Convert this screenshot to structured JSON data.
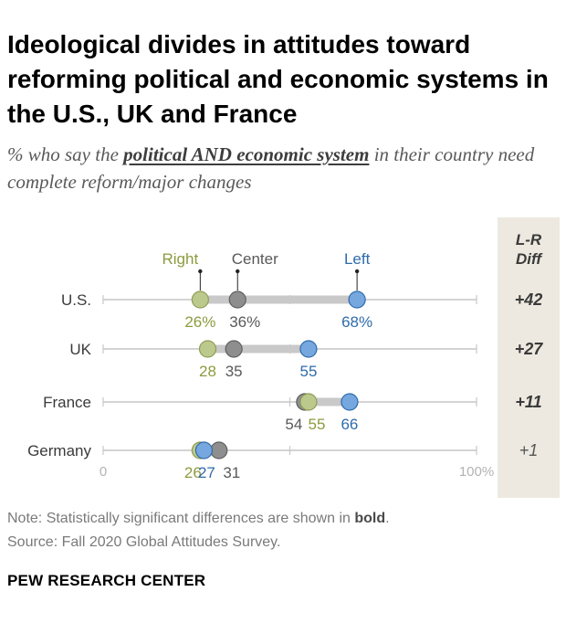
{
  "header": {
    "title": "Ideological divides in attitudes toward reforming political and economic systems in the U.S., UK and France",
    "subtitle_pre": "% who say the ",
    "subtitle_em": "political AND economic system",
    "subtitle_post": " in their country need complete reform/major changes"
  },
  "diff_header": {
    "line1": "L-R",
    "line2": "Diff"
  },
  "colors": {
    "right": "#bcc98d",
    "center": "#8e8e8e",
    "left": "#76a7de",
    "right_text": "#8c9b3e",
    "center_text": "#595959",
    "left_text": "#2f6bab"
  },
  "chart_data": {
    "type": "dot",
    "xlim": [
      0,
      100
    ],
    "x_tick_labels": [
      "0",
      "100%"
    ],
    "legend": [
      "Right",
      "Center",
      "Left"
    ],
    "categories": [
      "U.S.",
      "UK",
      "France",
      "Germany"
    ],
    "series": [
      {
        "name": "Right",
        "values": [
          26,
          28,
          55,
          26
        ]
      },
      {
        "name": "Center",
        "values": [
          36,
          35,
          54,
          31
        ]
      },
      {
        "name": "Left",
        "values": [
          68,
          55,
          66,
          27
        ]
      }
    ],
    "value_labels": {
      "Right": [
        "26%",
        "28",
        "55",
        "26"
      ],
      "Center": [
        "36%",
        "35",
        "54",
        "31"
      ],
      "Left": [
        "68%",
        "55",
        "66",
        "27"
      ]
    },
    "lr_diff": [
      "+42",
      "+27",
      "+11",
      "+1"
    ],
    "lr_diff_significant": [
      true,
      true,
      true,
      false
    ]
  },
  "notes": {
    "note_pre": "Note: Statistically significant differences are shown in ",
    "note_bold": "bold",
    "note_post": ".",
    "source": "Source: Fall 2020 Global Attitudes Survey."
  },
  "footer": "PEW RESEARCH CENTER"
}
